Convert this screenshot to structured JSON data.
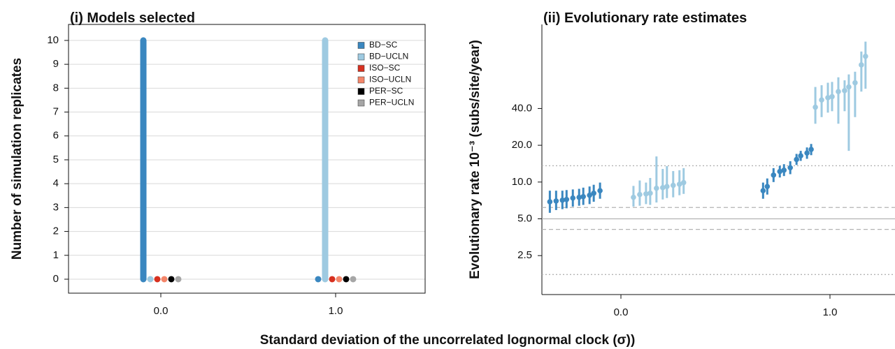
{
  "chart_data": [
    {
      "type": "dotplot",
      "title": "(i) Models selected",
      "ylabel": "Number of simulation replicates",
      "x": [
        0,
        1
      ],
      "xlim": [
        -0.528,
        1.512
      ],
      "xticks": [
        {
          "value": 0,
          "label": "0.0"
        },
        {
          "value": 1,
          "label": "1.0"
        }
      ],
      "ylim": [
        -0.585,
        10.67
      ],
      "yticks": [
        0,
        1,
        2,
        3,
        4,
        5,
        6,
        7,
        8,
        9,
        10
      ],
      "grid": true,
      "legend": "top-right",
      "series": [
        {
          "name": "BD−SC",
          "color": "#3a87c0",
          "values": [
            10,
            0
          ]
        },
        {
          "name": "BD−UCLN",
          "color": "#9ecae1",
          "values": [
            0,
            10
          ]
        },
        {
          "name": "ISO−SC",
          "color": "#d7301f",
          "values": [
            0,
            0
          ]
        },
        {
          "name": "ISO−UCLN",
          "color": "#f4866a",
          "values": [
            0,
            0
          ]
        },
        {
          "name": "PER−SC",
          "color": "#000000",
          "values": [
            0,
            0
          ]
        },
        {
          "name": "PER−UCLN",
          "color": "#a6a6a6",
          "values": [
            0,
            0
          ]
        }
      ]
    },
    {
      "type": "errorscatter",
      "title": "(ii) Evolutionary rate estimates",
      "ylabel": "Evolutionary rate 10⁻³ (subs/site/year)",
      "log_y": true,
      "xlim": [
        -0.378,
        1.311
      ],
      "xticks": [
        {
          "value": 0,
          "label": "0.0"
        },
        {
          "value": 1,
          "label": "1.0"
        }
      ],
      "ylim": [
        1.2,
        195
      ],
      "yticks": [
        2.5,
        {
          "value": 5,
          "label": "5.0"
        },
        {
          "value": 10,
          "label": "10.0"
        },
        {
          "value": 20,
          "label": "20.0"
        },
        {
          "value": 40,
          "label": "40.0"
        }
      ],
      "reference_lines": [
        {
          "value": 5,
          "style": "solid"
        },
        {
          "value": 6.19,
          "style": "dashed"
        },
        {
          "value": 4.1,
          "style": "dashed"
        },
        {
          "value": 13.6,
          "style": "dotted"
        },
        {
          "value": 1.75,
          "style": "dotted"
        }
      ],
      "series": [
        {
          "color": "#3a87c0",
          "x": [
            -0.34,
            -0.31,
            -0.28,
            -0.26,
            -0.23,
            -0.2,
            -0.18,
            -0.15,
            -0.13,
            -0.1,
            0.68,
            0.7,
            0.73,
            0.76,
            0.78,
            0.81,
            0.84,
            0.86,
            0.89,
            0.91
          ],
          "values": [
            6.9,
            7.0,
            7.1,
            7.2,
            7.4,
            7.5,
            7.6,
            7.8,
            8.1,
            8.5,
            8.5,
            9.2,
            11.4,
            12.2,
            12.5,
            13.1,
            15.3,
            16.4,
            17.3,
            18.5
          ],
          "lower": [
            5.6,
            5.9,
            6.0,
            6.1,
            6.3,
            6.4,
            6.5,
            6.6,
            6.9,
            7.3,
            7.3,
            7.9,
            10.0,
            10.9,
            11.2,
            11.6,
            13.8,
            14.9,
            15.5,
            16.6
          ],
          "upper": [
            8.5,
            8.5,
            8.5,
            8.6,
            8.7,
            8.8,
            9.0,
            9.2,
            9.5,
            9.9,
            9.9,
            10.7,
            13.0,
            13.6,
            14.0,
            14.8,
            17.0,
            18.0,
            19.2,
            20.5
          ]
        },
        {
          "color": "#9ecae1",
          "x": [
            0.06,
            0.09,
            0.12,
            0.14,
            0.17,
            0.2,
            0.22,
            0.25,
            0.28,
            0.3,
            0.93,
            0.96,
            0.99,
            1.01,
            1.04,
            1.07,
            1.09,
            1.12,
            1.15,
            1.17
          ],
          "values": [
            7.5,
            7.9,
            8.0,
            8.1,
            8.9,
            9.0,
            9.2,
            9.4,
            9.6,
            9.9,
            41,
            47,
            49,
            50,
            55,
            56,
            60,
            65,
            91,
            107
          ],
          "lower": [
            6.3,
            6.4,
            6.6,
            6.5,
            6.8,
            7.2,
            7.4,
            7.5,
            7.8,
            8.0,
            30,
            34,
            37,
            38,
            30,
            38,
            18,
            34,
            55,
            58
          ],
          "upper": [
            9.3,
            10.3,
            9.9,
            10.8,
            16.2,
            12.8,
            13.5,
            12.3,
            12.5,
            13.0,
            60,
            62,
            65,
            66,
            72,
            68,
            76,
            80,
            117,
            141
          ]
        }
      ]
    }
  ],
  "xlabel": "Standard deviation of the uncorrelated lognormal clock (σ))"
}
